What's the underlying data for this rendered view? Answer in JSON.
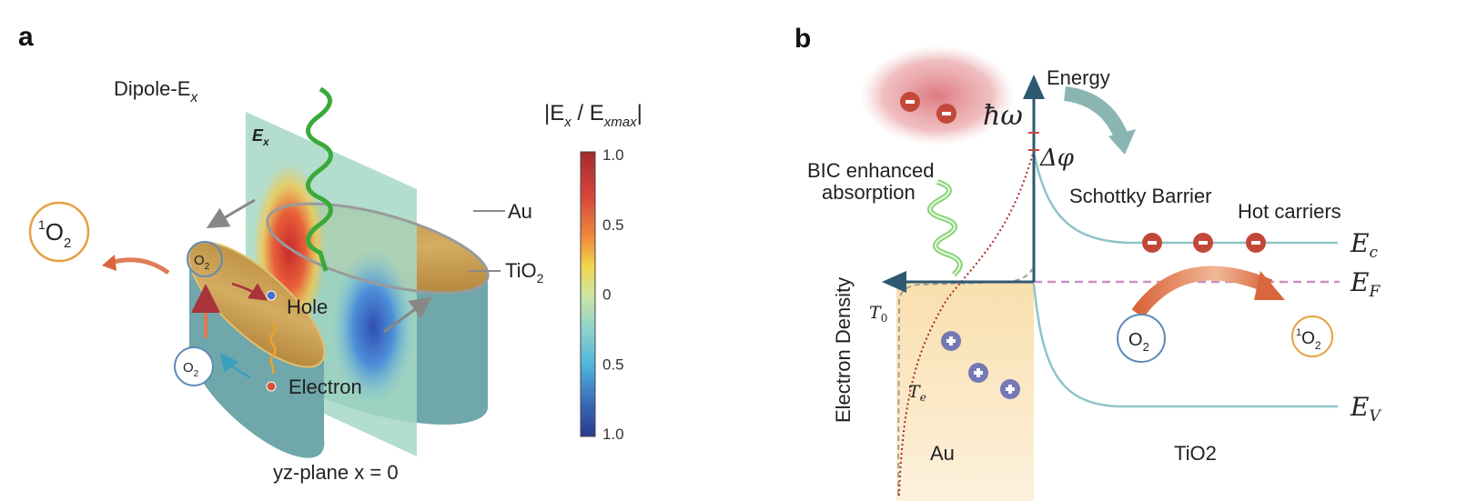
{
  "colors": {
    "gold": "#c9a052",
    "teal": "#6fa7aa",
    "band": "#8fc3c8",
    "axis": "#2e5870",
    "fermi": "#c98fc7",
    "minus": "#c4483a",
    "plus": "#7479b5",
    "arrow_orange": "#d9663c"
  },
  "panel_a": {
    "label": "a",
    "title_main": "Dipole-E",
    "title_sub": "x",
    "plane_label_main": "E",
    "plane_label_sub": "x",
    "colorbar": {
      "title_open": "|E",
      "title_sub1": "x",
      "title_mid": " / E",
      "title_sub2": "xmax",
      "title_close": "|",
      "ticks": [
        "1.0",
        "0.5",
        "0",
        "0.5",
        "1.0"
      ],
      "colormap": "jet"
    },
    "singlet_oxygen": {
      "sup": "1",
      "main": "O",
      "sub": "2"
    },
    "oxygen_top": {
      "main": "O",
      "sub": "2"
    },
    "oxygen_bottom": {
      "main": "O",
      "sub": "2"
    },
    "au_label": "Au",
    "tio2_label": {
      "main": "TiO",
      "sub": "2"
    },
    "hole_label": "Hole",
    "electron_label": "Electron",
    "caption": "yz-plane   x = 0"
  },
  "panel_b": {
    "label": "b",
    "energy_axis": "Energy",
    "hbar_omega": "ħω",
    "delta_phi": "Δφ",
    "bic_line1": "BIC enhanced",
    "bic_line2": "absorption",
    "density_axis": "Electron Density",
    "t0": {
      "main": "T",
      "sub": "0"
    },
    "te": {
      "main": "T",
      "sub": "e"
    },
    "schottky": "Schottky Barrier",
    "hot_carriers": "Hot carriers",
    "ec": {
      "main": "E",
      "sub": "c"
    },
    "ef": {
      "main": "E",
      "sub": "F"
    },
    "ev": {
      "main": "E",
      "sub": "V"
    },
    "oxygen": {
      "main": "O",
      "sub": "2"
    },
    "singlet_oxygen": {
      "sup": "1",
      "main": "O",
      "sub": "2"
    },
    "au_label": "Au",
    "tio2_label": "TiO2"
  }
}
